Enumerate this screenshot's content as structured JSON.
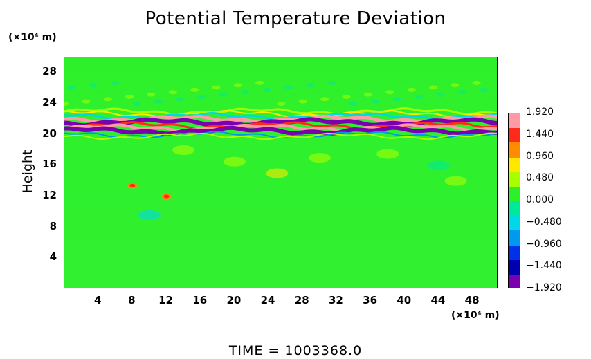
{
  "chart_data": {
    "type": "heatmap",
    "title": "Potential Temperature Deviation",
    "ylabel": "Height",
    "xlabel": "",
    "x_unit": "(×10⁴ m)",
    "y_unit": "(×10⁴ m)",
    "xlim": [
      0,
      51
    ],
    "ylim": [
      0,
      30
    ],
    "x_ticks": [
      "4",
      "8",
      "12",
      "16",
      "20",
      "24",
      "28",
      "32",
      "36",
      "40",
      "44",
      "48"
    ],
    "y_ticks": [
      "4",
      "8",
      "12",
      "16",
      "20",
      "24",
      "28"
    ],
    "colorbar": {
      "labels": [
        "1.920",
        "1.440",
        "0.960",
        "0.480",
        "0.000",
        "−0.480",
        "−0.960",
        "−1.440",
        "−1.920"
      ],
      "range": [
        -1.92,
        1.92
      ],
      "colors": [
        "#ff9aa6",
        "#ff2a1a",
        "#ff8c00",
        "#ffe800",
        "#a8ff00",
        "#2ef02a",
        "#00e89a",
        "#00d8e8",
        "#0098f0",
        "#0030e8",
        "#0000b0",
        "#7a00b0"
      ]
    },
    "grid": false,
    "features": [
      {
        "kind": "band",
        "x": [
          0,
          51
        ],
        "y": [
          20,
          23
        ],
        "description": "strong alternating positive/negative deviation layer"
      },
      {
        "kind": "blob",
        "x": 8,
        "y": 13.4,
        "value": 1.6
      },
      {
        "kind": "blob",
        "x": 12,
        "y": 12,
        "value": 1.5
      }
    ]
  },
  "footer": {
    "time_text": "TIME  =  1003368.0"
  }
}
